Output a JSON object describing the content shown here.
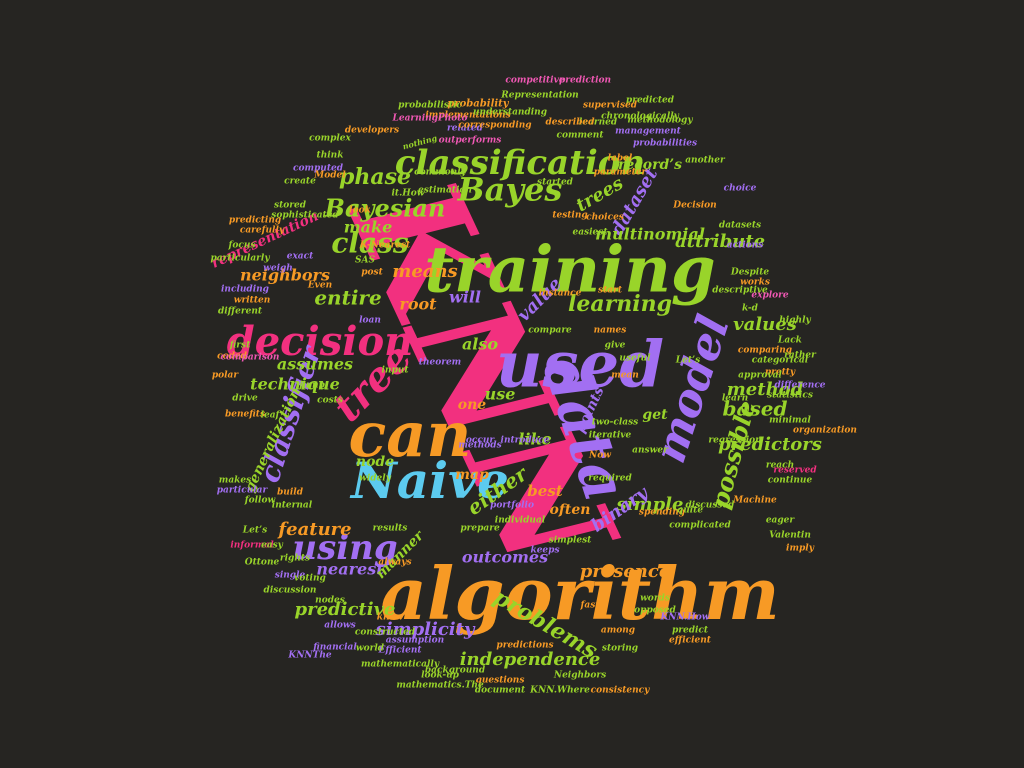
{
  "palette": {
    "background": "#262522",
    "pink": "#f2307f",
    "orange": "#f79a25",
    "green": "#99d42a",
    "blue": "#5ccbef",
    "purple": "#a26ff2",
    "magenta": "#f058b4"
  },
  "words": [
    {
      "text": "KNN",
      "color": "pink"
    },
    {
      "text": "algorithm",
      "color": "orange"
    },
    {
      "text": "training",
      "color": "green"
    },
    {
      "text": "used",
      "color": "purple"
    },
    {
      "text": "can",
      "color": "orange"
    },
    {
      "text": "Naive",
      "color": "blue"
    },
    {
      "text": "data",
      "color": "purple"
    },
    {
      "text": "decision",
      "color": "pink"
    },
    {
      "text": "classification",
      "color": "green"
    },
    {
      "text": "tree",
      "color": "pink"
    },
    {
      "text": "model",
      "color": "purple"
    },
    {
      "text": "Bayes",
      "color": "green"
    },
    {
      "text": "Bayesian",
      "color": "green"
    },
    {
      "text": "class",
      "color": "green"
    },
    {
      "text": "using",
      "color": "purple"
    },
    {
      "text": "classifier",
      "color": "purple"
    },
    {
      "text": "possible",
      "color": "green"
    },
    {
      "text": "problems",
      "color": "green"
    },
    {
      "text": "learning",
      "color": "green"
    },
    {
      "text": "based",
      "color": "green"
    },
    {
      "text": "values",
      "color": "green"
    },
    {
      "text": "attribute",
      "color": "green"
    },
    {
      "text": "phase",
      "color": "green"
    },
    {
      "text": "trees",
      "color": "green"
    },
    {
      "text": "means",
      "color": "orange"
    },
    {
      "text": "dataset",
      "color": "purple"
    },
    {
      "text": "multinomial",
      "color": "green"
    },
    {
      "text": "value",
      "color": "purple"
    },
    {
      "text": "entire",
      "color": "green"
    },
    {
      "text": "either",
      "color": "green"
    },
    {
      "text": "feature",
      "color": "orange"
    },
    {
      "text": "simple",
      "color": "green"
    },
    {
      "text": "binary",
      "color": "purple"
    },
    {
      "text": "method",
      "color": "green"
    },
    {
      "text": "predictors",
      "color": "green"
    },
    {
      "text": "independence",
      "color": "green"
    },
    {
      "text": "predictive",
      "color": "green"
    },
    {
      "text": "simplicity",
      "color": "purple"
    },
    {
      "text": "presence",
      "color": "orange"
    },
    {
      "text": "outcomes",
      "color": "purple"
    },
    {
      "text": "nearest",
      "color": "purple"
    },
    {
      "text": "neighbors",
      "color": "orange"
    },
    {
      "text": "assumes",
      "color": "green"
    },
    {
      "text": "technique",
      "color": "green"
    },
    {
      "text": "representation",
      "color": "pink"
    },
    {
      "text": "generalization",
      "color": "green"
    },
    {
      "text": "record’s",
      "color": "green"
    },
    {
      "text": "root",
      "color": "orange"
    },
    {
      "text": "will",
      "color": "purple"
    },
    {
      "text": "also",
      "color": "green"
    },
    {
      "text": "use",
      "color": "green"
    },
    {
      "text": "like",
      "color": "green"
    },
    {
      "text": "node",
      "color": "green"
    },
    {
      "text": "points",
      "color": "purple"
    },
    {
      "text": "best",
      "color": "orange"
    },
    {
      "text": "map",
      "color": "orange"
    },
    {
      "text": "often",
      "color": "orange"
    },
    {
      "text": "get",
      "color": "green"
    },
    {
      "text": "one",
      "color": "orange"
    },
    {
      "text": "manner",
      "color": "green"
    },
    {
      "text": "make",
      "color": "green"
    },
    {
      "text": "probability",
      "color": "orange"
    },
    {
      "text": "competitive",
      "color": "magenta"
    },
    {
      "text": "prediction",
      "color": "magenta"
    },
    {
      "text": "implementations",
      "color": "orange"
    },
    {
      "text": "Representation",
      "color": "green"
    },
    {
      "text": "probabilistic",
      "color": "green"
    },
    {
      "text": "predicted",
      "color": "green"
    },
    {
      "text": "supervised",
      "color": "orange"
    },
    {
      "text": "LearningPhoto",
      "color": "magenta"
    },
    {
      "text": "understanding",
      "color": "green"
    },
    {
      "text": "learned",
      "color": "green"
    },
    {
      "text": "related",
      "color": "purple"
    },
    {
      "text": "chronologically",
      "color": "green"
    },
    {
      "text": "corresponding",
      "color": "orange"
    },
    {
      "text": "described",
      "color": "orange"
    },
    {
      "text": "methodology",
      "color": "green"
    },
    {
      "text": "developers",
      "color": "orange"
    },
    {
      "text": "outperforms",
      "color": "magenta"
    },
    {
      "text": "management",
      "color": "purple"
    },
    {
      "text": "comment",
      "color": "green"
    },
    {
      "text": "nothing",
      "color": "green"
    },
    {
      "text": "probabilities",
      "color": "purple"
    },
    {
      "text": "complex",
      "color": "green"
    },
    {
      "text": "think",
      "color": "green"
    },
    {
      "text": "another",
      "color": "green"
    },
    {
      "text": "computed",
      "color": "purple"
    },
    {
      "text": "Model",
      "color": "orange"
    },
    {
      "text": "commonly",
      "color": "green"
    },
    {
      "text": "label",
      "color": "orange"
    },
    {
      "text": "parameter",
      "color": "orange"
    },
    {
      "text": "started",
      "color": "green"
    },
    {
      "text": "create",
      "color": "green"
    },
    {
      "text": "it.How",
      "color": "green"
    },
    {
      "text": "estimation",
      "color": "green"
    },
    {
      "text": "choice",
      "color": "purple"
    },
    {
      "text": "stored",
      "color": "green"
    },
    {
      "text": "look",
      "color": "orange"
    },
    {
      "text": "choices",
      "color": "orange"
    },
    {
      "text": "Decision",
      "color": "orange"
    },
    {
      "text": "sophisticated",
      "color": "green"
    },
    {
      "text": "predicting",
      "color": "orange"
    },
    {
      "text": "testing",
      "color": "orange"
    },
    {
      "text": "easiest",
      "color": "green"
    },
    {
      "text": "datasets",
      "color": "green"
    },
    {
      "text": "carefully",
      "color": "orange"
    },
    {
      "text": "K-Nearest",
      "color": "orange"
    },
    {
      "text": "actions",
      "color": "purple"
    },
    {
      "text": "focus",
      "color": "green"
    },
    {
      "text": "SAS",
      "color": "green"
    },
    {
      "text": "post",
      "color": "orange"
    },
    {
      "text": "Despite",
      "color": "green"
    },
    {
      "text": "particularly",
      "color": "green"
    },
    {
      "text": "weigh",
      "color": "purple"
    },
    {
      "text": "exact",
      "color": "purple"
    },
    {
      "text": "works",
      "color": "orange"
    },
    {
      "text": "including",
      "color": "purple"
    },
    {
      "text": "explore",
      "color": "magenta"
    },
    {
      "text": "Even",
      "color": "orange"
    },
    {
      "text": "descriptive",
      "color": "green"
    },
    {
      "text": "written",
      "color": "orange"
    },
    {
      "text": "instance",
      "color": "orange"
    },
    {
      "text": "start",
      "color": "orange"
    },
    {
      "text": "loan",
      "color": "purple"
    },
    {
      "text": "k-d",
      "color": "green"
    },
    {
      "text": "highly",
      "color": "green"
    },
    {
      "text": "different",
      "color": "green"
    },
    {
      "text": "compare",
      "color": "green"
    },
    {
      "text": "names",
      "color": "orange"
    },
    {
      "text": "Lack",
      "color": "green"
    },
    {
      "text": "first",
      "color": "green"
    },
    {
      "text": "comparing",
      "color": "orange"
    },
    {
      "text": "coded",
      "color": "orange"
    },
    {
      "text": "comparison",
      "color": "magenta"
    },
    {
      "text": "give",
      "color": "green"
    },
    {
      "text": "categorical",
      "color": "green"
    },
    {
      "text": "rather",
      "color": "green"
    },
    {
      "text": "pretty",
      "color": "orange"
    },
    {
      "text": "polar",
      "color": "orange"
    },
    {
      "text": "input",
      "color": "green"
    },
    {
      "text": "theorem",
      "color": "purple"
    },
    {
      "text": "mean",
      "color": "orange"
    },
    {
      "text": "useful",
      "color": "green"
    },
    {
      "text": "approval",
      "color": "green"
    },
    {
      "text": "Let’s",
      "color": "green"
    },
    {
      "text": "learn",
      "color": "green"
    },
    {
      "text": "jump",
      "color": "green"
    },
    {
      "text": "statistics",
      "color": "green"
    },
    {
      "text": "difference",
      "color": "purple"
    },
    {
      "text": "drive",
      "color": "green"
    },
    {
      "text": "costs",
      "color": "green"
    },
    {
      "text": "two-class",
      "color": "green"
    },
    {
      "text": "minimal",
      "color": "green"
    },
    {
      "text": "benefits",
      "color": "orange"
    },
    {
      "text": "leaf",
      "color": "green"
    },
    {
      "text": "occur",
      "color": "purple"
    },
    {
      "text": "Now",
      "color": "orange"
    },
    {
      "text": "organization",
      "color": "orange"
    },
    {
      "text": "regression",
      "color": "green"
    },
    {
      "text": "iterative",
      "color": "green"
    },
    {
      "text": "reach",
      "color": "green"
    },
    {
      "text": "answer",
      "color": "green"
    },
    {
      "text": "introduce",
      "color": "purple"
    },
    {
      "text": "methods",
      "color": "purple"
    },
    {
      "text": "makes",
      "color": "green"
    },
    {
      "text": "widely",
      "color": "green"
    },
    {
      "text": "required",
      "color": "green"
    },
    {
      "text": "reserved",
      "color": "pink"
    },
    {
      "text": "continue",
      "color": "green"
    },
    {
      "text": "particular",
      "color": "purple"
    },
    {
      "text": "build",
      "color": "orange"
    },
    {
      "text": "internal",
      "color": "green"
    },
    {
      "text": "portfolio",
      "color": "purple"
    },
    {
      "text": "spending",
      "color": "orange"
    },
    {
      "text": "quite",
      "color": "green"
    },
    {
      "text": "discussed",
      "color": "green"
    },
    {
      "text": "Machine",
      "color": "orange"
    },
    {
      "text": "eager",
      "color": "green"
    },
    {
      "text": "follow",
      "color": "green"
    },
    {
      "text": "individual",
      "color": "green"
    },
    {
      "text": "prepare",
      "color": "green"
    },
    {
      "text": "complicated",
      "color": "green"
    },
    {
      "text": "Let’s",
      "color": "green"
    },
    {
      "text": "results",
      "color": "green"
    },
    {
      "text": "simplest",
      "color": "green"
    },
    {
      "text": "Valentin",
      "color": "green"
    },
    {
      "text": "imply",
      "color": "orange"
    },
    {
      "text": "informal",
      "color": "pink"
    },
    {
      "text": "easy",
      "color": "green"
    },
    {
      "text": "keeps",
      "color": "purple"
    },
    {
      "text": "Ottone",
      "color": "green"
    },
    {
      "text": "rights",
      "color": "green"
    },
    {
      "text": "always",
      "color": "orange"
    },
    {
      "text": "single",
      "color": "purple"
    },
    {
      "text": "voting",
      "color": "green"
    },
    {
      "text": "discussion",
      "color": "green"
    },
    {
      "text": "nodes",
      "color": "green"
    },
    {
      "text": "know",
      "color": "orange"
    },
    {
      "text": "fast",
      "color": "orange"
    },
    {
      "text": "words",
      "color": "green"
    },
    {
      "text": "opposed",
      "color": "green"
    },
    {
      "text": "KNN.How",
      "color": "purple"
    },
    {
      "text": "allows",
      "color": "purple"
    },
    {
      "text": "constructed",
      "color": "green"
    },
    {
      "text": "assumption",
      "color": "purple"
    },
    {
      "text": "predict",
      "color": "green"
    },
    {
      "text": "among",
      "color": "orange"
    },
    {
      "text": "efficient",
      "color": "orange"
    },
    {
      "text": "financial",
      "color": "purple"
    },
    {
      "text": "Efficient",
      "color": "purple"
    },
    {
      "text": "world",
      "color": "green"
    },
    {
      "text": "predictions",
      "color": "orange"
    },
    {
      "text": "storing",
      "color": "green"
    },
    {
      "text": "KNNThe",
      "color": "purple"
    },
    {
      "text": "mathematically",
      "color": "green"
    },
    {
      "text": "background",
      "color": "green"
    },
    {
      "text": "Neighbors",
      "color": "green"
    },
    {
      "text": "questions",
      "color": "orange"
    },
    {
      "text": "look-up",
      "color": "green"
    },
    {
      "text": "mathematics.The",
      "color": "green"
    },
    {
      "text": "document",
      "color": "green"
    },
    {
      "text": "KNN.Where",
      "color": "green"
    },
    {
      "text": "consistency",
      "color": "orange"
    }
  ]
}
